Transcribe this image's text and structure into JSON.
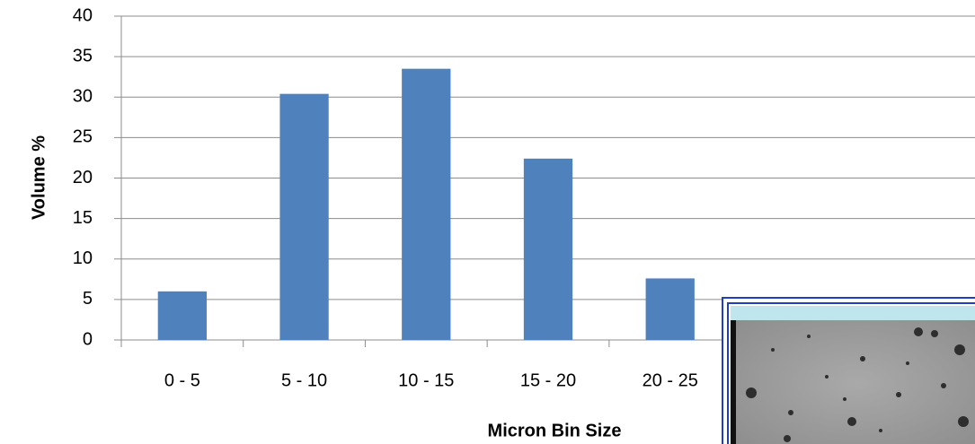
{
  "chart_data": {
    "type": "bar",
    "x_label": "Micron Bin Size",
    "y_label": "Volume %",
    "categories": [
      "0 - 5",
      "5 - 10",
      "10 - 15",
      "15 - 20",
      "20 - 25",
      null,
      null
    ],
    "values": [
      6,
      30.4,
      33.5,
      22.4,
      7.6,
      null,
      null
    ],
    "color": "#4f81bd",
    "ylim": [
      0,
      40
    ],
    "yticks": [
      0,
      5,
      10,
      15,
      20,
      25,
      30,
      35,
      40
    ],
    "grid": true
  }
}
